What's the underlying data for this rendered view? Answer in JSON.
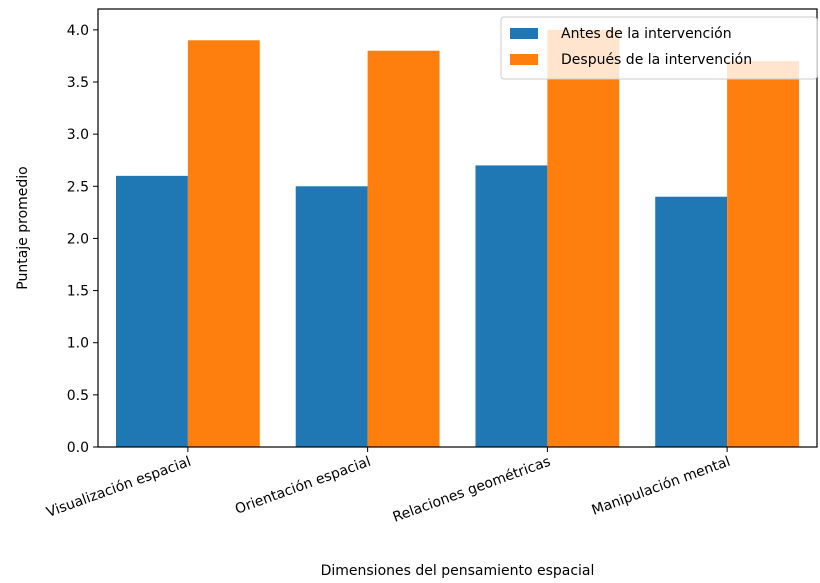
{
  "chart_data": {
    "type": "bar",
    "categories": [
      "Visualización espacial",
      "Orientación espacial",
      "Relaciones geométricas",
      "Manipulación mental"
    ],
    "series": [
      {
        "name": "Antes de la intervención",
        "values": [
          2.6,
          2.5,
          2.7,
          2.4
        ],
        "color": "#1f77b4"
      },
      {
        "name": "Después de la intervención",
        "values": [
          3.9,
          3.8,
          4.0,
          3.7
        ],
        "color": "#ff7f0e"
      }
    ],
    "xlabel": "Dimensiones del pensamiento espacial",
    "ylabel": "Puntaje promedio",
    "ylim": [
      0,
      4.2
    ],
    "yticks": [
      "0.0",
      "0.5",
      "1.0",
      "1.5",
      "2.0",
      "2.5",
      "3.0",
      "3.5",
      "4.0"
    ],
    "grid": false,
    "legend_position": "top-right"
  }
}
